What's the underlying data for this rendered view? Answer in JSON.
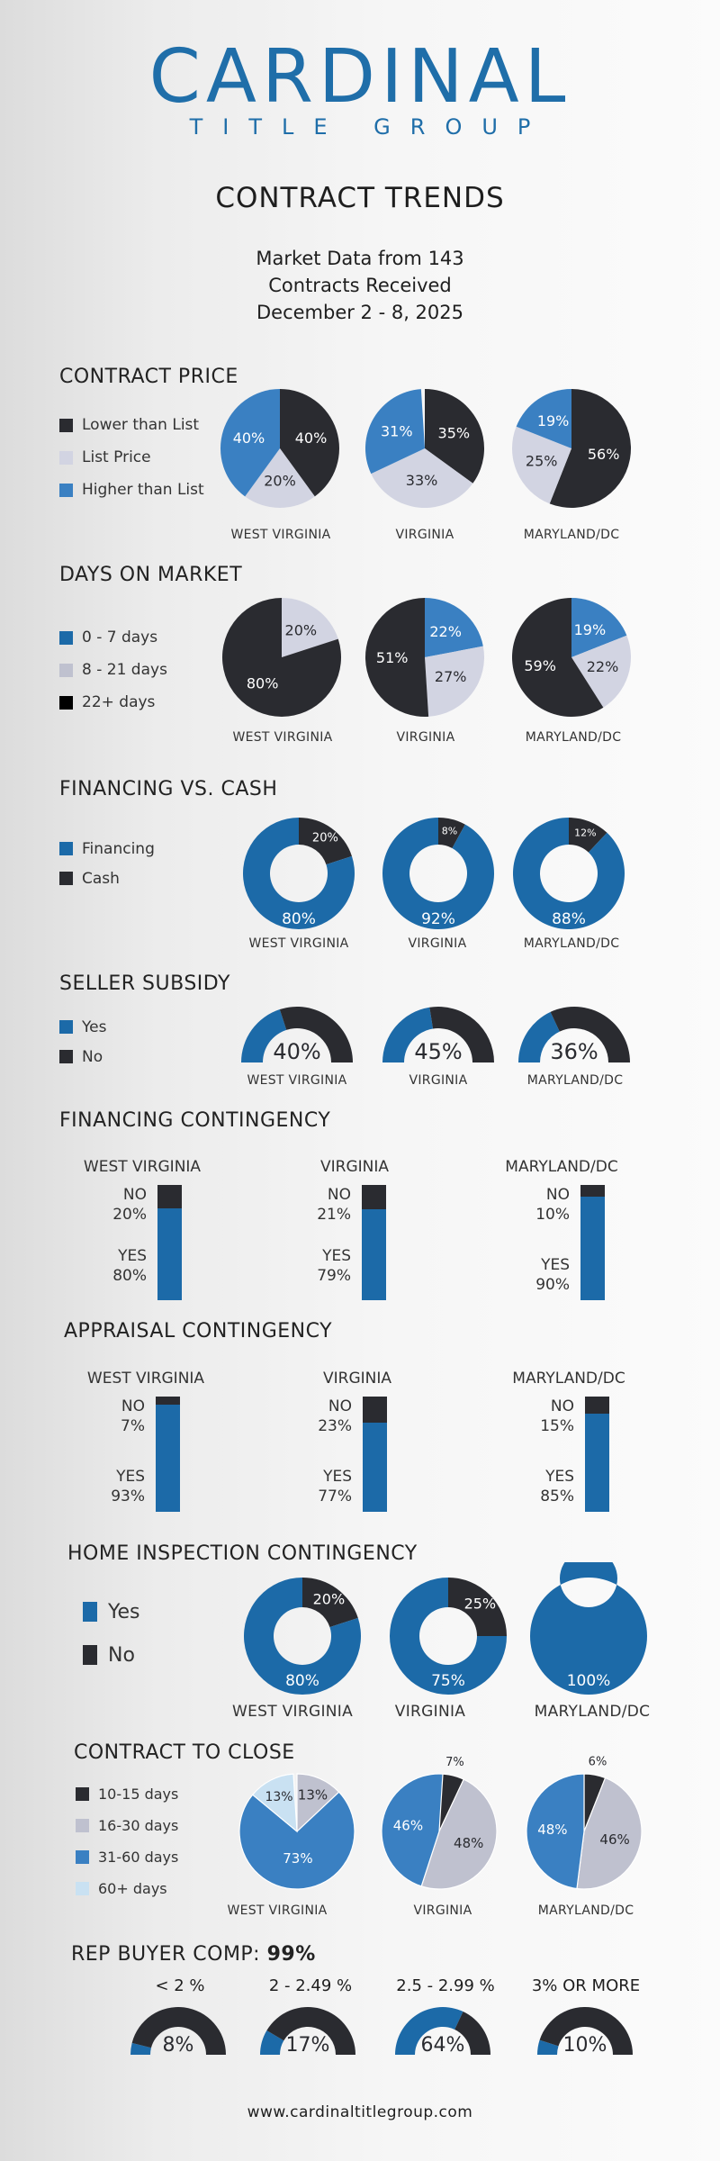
{
  "header": {
    "logo_main": "CARDINAL",
    "logo_sub": "TITLE GROUP",
    "title": "CONTRACT TRENDS",
    "subtitle_lines": [
      "Market Data from 143",
      "Contracts Received",
      "December 2 - 8, 2025"
    ]
  },
  "colors": {
    "dark": "#2a2b30",
    "light": "#d2d4e2",
    "blue": "#3a80c2",
    "deep_blue": "#1c6aa8",
    "pale_blue": "#c9e1f2",
    "gray": "#bfc1cf"
  },
  "chart_data": [
    {
      "id": "contract_price",
      "type": "pie",
      "title": "CONTRACT PRICE",
      "legend": [
        "Lower than List",
        "List Price",
        "Higher than List"
      ],
      "categories": [
        "WEST VIRGINIA",
        "VIRGINIA",
        "MARYLAND/DC"
      ],
      "series": [
        {
          "name": "Lower than List",
          "values": [
            40,
            35,
            56
          ]
        },
        {
          "name": "List Price",
          "values": [
            20,
            33,
            25
          ]
        },
        {
          "name": "Higher than List",
          "values": [
            40,
            31,
            19
          ]
        }
      ]
    },
    {
      "id": "days_on_market",
      "type": "pie",
      "title": "DAYS ON MARKET",
      "legend": [
        "0 - 7 days",
        "8 - 21 days",
        "22+ days"
      ],
      "categories": [
        "WEST VIRGINIA",
        "VIRGINIA",
        "MARYLAND/DC"
      ],
      "series": [
        {
          "name": "0 - 7 days",
          "values": [
            0,
            22,
            19
          ]
        },
        {
          "name": "8 - 21 days",
          "values": [
            20,
            27,
            22
          ]
        },
        {
          "name": "22+ days",
          "values": [
            80,
            51,
            59
          ]
        }
      ]
    },
    {
      "id": "financing_vs_cash",
      "type": "pie",
      "title": "FINANCING VS. CASH",
      "legend": [
        "Financing",
        "Cash"
      ],
      "categories": [
        "WEST VIRGINIA",
        "VIRGINIA",
        "MARYLAND/DC"
      ],
      "series": [
        {
          "name": "Financing",
          "values": [
            80,
            92,
            88
          ]
        },
        {
          "name": "Cash",
          "values": [
            20,
            8,
            12
          ]
        }
      ]
    },
    {
      "id": "seller_subsidy",
      "type": "pie",
      "title": "SELLER SUBSIDY",
      "legend": [
        "Yes",
        "No"
      ],
      "categories": [
        "WEST VIRGINIA",
        "VIRGINIA",
        "MARYLAND/DC"
      ],
      "series": [
        {
          "name": "Yes",
          "values": [
            40,
            45,
            36
          ]
        },
        {
          "name": "No",
          "values": [
            60,
            55,
            64
          ]
        }
      ]
    },
    {
      "id": "financing_contingency",
      "type": "bar",
      "title": "FINANCING CONTINGENCY",
      "categories": [
        "WEST VIRGINIA",
        "VIRGINIA",
        "MARYLAND/DC"
      ],
      "series": [
        {
          "name": "NO",
          "values": [
            20,
            21,
            10
          ]
        },
        {
          "name": "YES",
          "values": [
            80,
            79,
            90
          ]
        }
      ]
    },
    {
      "id": "appraisal_contingency",
      "type": "bar",
      "title": "APPRAISAL CONTINGENCY",
      "categories": [
        "WEST VIRGINIA",
        "VIRGINIA",
        "MARYLAND/DC"
      ],
      "series": [
        {
          "name": "NO",
          "values": [
            7,
            23,
            15
          ]
        },
        {
          "name": "YES",
          "values": [
            93,
            77,
            85
          ]
        }
      ]
    },
    {
      "id": "home_inspection_contingency",
      "type": "pie",
      "title": "HOME INSPECTION CONTINGENCY",
      "legend": [
        "Yes",
        "No"
      ],
      "categories": [
        "WEST VIRGINIA",
        "VIRGINIA",
        "MARYLAND/DC"
      ],
      "series": [
        {
          "name": "Yes",
          "values": [
            80,
            75,
            100
          ]
        },
        {
          "name": "No",
          "values": [
            20,
            25,
            0
          ]
        }
      ]
    },
    {
      "id": "contract_to_close",
      "type": "pie",
      "title": "CONTRACT TO CLOSE",
      "legend": [
        "10-15 days",
        "16-30 days",
        "31-60 days",
        "60+ days"
      ],
      "categories": [
        "WEST VIRGINIA",
        "VIRGINIA",
        "MARYLAND/DC"
      ],
      "series": [
        {
          "name": "10-15 days",
          "values": [
            0,
            7,
            6
          ]
        },
        {
          "name": "16-30 days",
          "values": [
            13,
            48,
            46
          ]
        },
        {
          "name": "31-60 days",
          "values": [
            73,
            46,
            48
          ]
        },
        {
          "name": "60+ days",
          "values": [
            13,
            0,
            0
          ]
        }
      ]
    },
    {
      "id": "rep_buyer_comp",
      "type": "pie",
      "title": "REP BUYER COMP:",
      "title_value": "99%",
      "categories": [
        "< 2 %",
        "2 - 2.49 %",
        "2.5 - 2.99 %",
        "3% OR MORE"
      ],
      "values": [
        8,
        17,
        64,
        10
      ]
    }
  ],
  "footer": {
    "url": "www.cardinaltitlegroup.com"
  }
}
